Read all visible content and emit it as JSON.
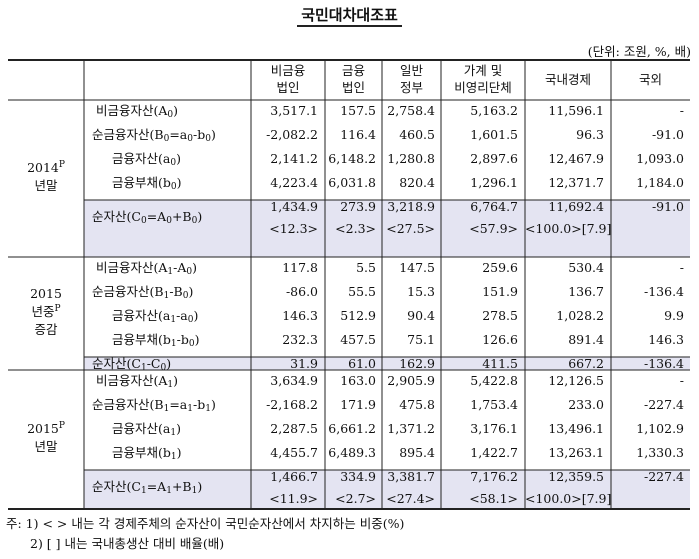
{
  "title": "국민대차대조표",
  "unit": "(단위: 조원, %, 배)",
  "columns": [
    [
      "비금융",
      "법인"
    ],
    [
      "금융",
      "법인"
    ],
    [
      "일반",
      "정부"
    ],
    [
      "가계 및",
      "비영리단체"
    ],
    [
      "국내경제"
    ],
    [
      "국외"
    ]
  ],
  "sections": [
    {
      "label_lines": [
        "2014P",
        "년말"
      ],
      "rows": [
        {
          "label": "비금융자산(A0)",
          "values": [
            "3,517.1",
            "157.5",
            "2,758.4",
            "5,163.2",
            "11,596.1",
            "-"
          ]
        },
        {
          "label": "순금융자산(B0=a0-b0)",
          "values": [
            "-2,082.2",
            "116.4",
            "460.5",
            "1,601.5",
            "96.3",
            "-91.0"
          ]
        },
        {
          "label": "금융자산(a0)",
          "values": [
            "2,141.2",
            "6,148.2",
            "1,280.8",
            "2,897.6",
            "12,467.9",
            "1,093.0"
          ]
        },
        {
          "label": "금융부채(b0)",
          "values": [
            "4,223.4",
            "6,031.8",
            "820.4",
            "1,296.1",
            "12,371.7",
            "1,184.0"
          ]
        },
        {
          "label": "순자산(C0=A0+B0)",
          "values": [
            "1,434.9",
            "273.9",
            "3,218.9",
            "6,764.7",
            "11,692.4",
            "-91.0"
          ],
          "shares": [
            "<12.3>",
            "<2.3>",
            "<27.5>",
            "<57.9>",
            "<100.0>[7.9]",
            ""
          ]
        }
      ]
    },
    {
      "label_lines": [
        "2015",
        "년중P",
        "증감"
      ],
      "rows": [
        {
          "label": "비금융자산(A1-A0)",
          "values": [
            "117.8",
            "5.5",
            "147.5",
            "259.6",
            "530.4",
            "-"
          ]
        },
        {
          "label": "순금융자산(B1-B0)",
          "values": [
            "-86.0",
            "55.5",
            "15.3",
            "151.9",
            "136.7",
            "-136.4"
          ]
        },
        {
          "label": "금융자산(a1-a0)",
          "values": [
            "146.3",
            "512.9",
            "90.4",
            "278.5",
            "1,028.2",
            "9.9"
          ]
        },
        {
          "label": "금융부채(b1-b0)",
          "values": [
            "232.3",
            "457.5",
            "75.1",
            "126.6",
            "891.4",
            "146.3"
          ]
        },
        {
          "label": "순자산(C1-C0)",
          "values": [
            "31.9",
            "61.0",
            "162.9",
            "411.5",
            "667.2",
            "-136.4"
          ]
        }
      ]
    },
    {
      "label_lines": [
        "2015P",
        "년말"
      ],
      "rows": [
        {
          "label": "비금융자산(A1)",
          "values": [
            "3,634.9",
            "163.0",
            "2,905.9",
            "5,422.8",
            "12,126.5",
            "-"
          ]
        },
        {
          "label": "순금융자산(B1=a1-b1)",
          "values": [
            "-2,168.2",
            "171.9",
            "475.8",
            "1,753.4",
            "233.0",
            "-227.4"
          ]
        },
        {
          "label": "금융자산(a1)",
          "values": [
            "2,287.5",
            "6,661.2",
            "1,371.2",
            "3,176.1",
            "13,496.1",
            "1,102.9"
          ]
        },
        {
          "label": "금융부채(b1)",
          "values": [
            "4,455.7",
            "6,489.3",
            "895.4",
            "1,422.7",
            "13,263.1",
            "1,330.3"
          ]
        },
        {
          "label": "순자산(C1=A1+B1)",
          "values": [
            "1,466.7",
            "334.9",
            "3,381.7",
            "7,176.2",
            "12,359.5",
            "-227.4"
          ],
          "shares": [
            "<11.9>",
            "<2.7>",
            "<27.4>",
            "<58.1>",
            "<100.0>[7.9]",
            ""
          ]
        }
      ]
    }
  ],
  "notes": [
    "주: 1) < > 내는 각 경제주체의 순자산이 국민순자산에서 차지하는 비중(%)",
    "2) [ ] 내는 국내총생산 대비 배율(배)"
  ]
}
